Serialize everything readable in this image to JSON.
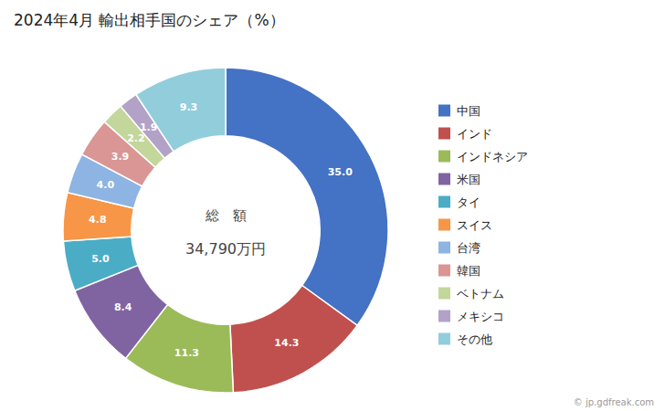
{
  "chart_data": {
    "type": "donut",
    "title": "2024年4月 輸出相手国のシェア（%）",
    "categories": [
      "中国",
      "インド",
      "インドネシア",
      "米国",
      "タイ",
      "スイス",
      "台湾",
      "韓国",
      "ベトナム",
      "メキシコ",
      "その他"
    ],
    "values": [
      35.0,
      14.3,
      11.3,
      8.4,
      5.0,
      4.8,
      4.0,
      3.9,
      2.2,
      1.9,
      9.3
    ],
    "value_labels": [
      "35.0",
      "14.3",
      "11.3",
      "8.4",
      "5.0",
      "4.8",
      "4.0",
      "3.9",
      "2.2",
      "1.9",
      "9.3"
    ],
    "colors": [
      "#4472C4",
      "#C0504D",
      "#9BBB59",
      "#8064A2",
      "#4BACC6",
      "#F79646",
      "#8DB4E2",
      "#DA9694",
      "#C3D69B",
      "#B2A2C7",
      "#92CDDC"
    ],
    "data_labels": true,
    "legend": "right",
    "annotations": [
      "総　額",
      "34,790万円",
      "© jp.gdfreak.com"
    ]
  }
}
